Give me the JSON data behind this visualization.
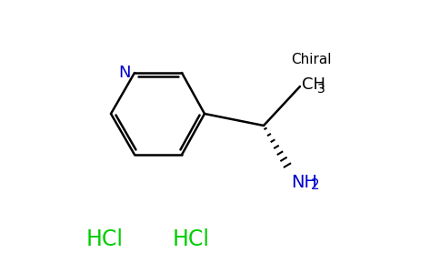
{
  "background_color": "#ffffff",
  "bond_color": "#000000",
  "N_color": "#0000cc",
  "NH2_color": "#0000cc",
  "HCl_color": "#00cc00",
  "chiral_label": "Chiral",
  "chiral_color": "#000000",
  "chiral_fontsize": 11,
  "CH3_label": "CH",
  "CH3_sub": "3",
  "CH3_color": "#000000",
  "CH3_fontsize": 13,
  "NH2_main": "NH",
  "NH2_sub": "2",
  "NH2_fontsize": 14,
  "N_label": "N",
  "N_fontsize": 13,
  "HCl_label": "HCl",
  "HCl_fontsize": 17,
  "figsize": [
    4.84,
    3.0
  ],
  "dpi": 100,
  "lw": 1.8
}
